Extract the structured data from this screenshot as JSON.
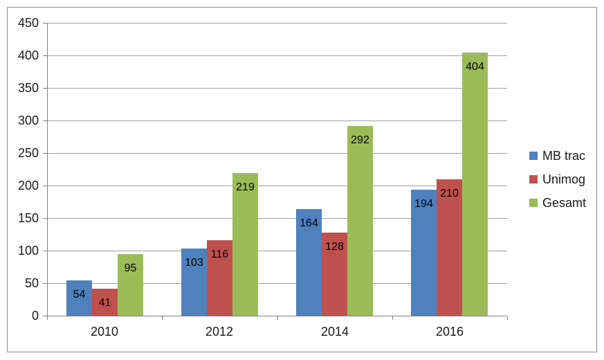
{
  "chart_data": {
    "type": "bar",
    "title": "",
    "xlabel": "",
    "ylabel": "",
    "categories": [
      "2010",
      "2012",
      "2014",
      "2016"
    ],
    "series": [
      {
        "name": "MB trac",
        "color": "#4F81BD",
        "values": [
          54,
          103,
          164,
          194
        ]
      },
      {
        "name": "Unimog",
        "color": "#C0504D",
        "values": [
          41,
          116,
          128,
          210
        ]
      },
      {
        "name": "Gesamt",
        "color": "#9BBB59",
        "values": [
          95,
          219,
          292,
          404
        ]
      }
    ],
    "data_labels": {
      "position": "inside-end",
      "color": "#000000",
      "values": [
        [
          "54",
          "103",
          "164",
          "194"
        ],
        [
          "41",
          "116",
          "128",
          "210"
        ],
        [
          "95",
          "219",
          "292",
          "404"
        ]
      ]
    },
    "ylim": [
      0,
      450
    ],
    "ytick_step": 50,
    "yticks": [
      "450",
      "400",
      "350",
      "300",
      "250",
      "200",
      "150",
      "100",
      "50",
      "0"
    ],
    "grid": true,
    "legend": {
      "position": "right",
      "entries": [
        "MB trac",
        "Unimog",
        "Gesamt"
      ]
    },
    "colors": {
      "background": "#FFFFFF",
      "chart_border": "#8C8C8C",
      "gridline": "#9E9E9E",
      "axis": "#808080",
      "tick_label": "#1A1A1A",
      "data_label": "#000000"
    }
  }
}
